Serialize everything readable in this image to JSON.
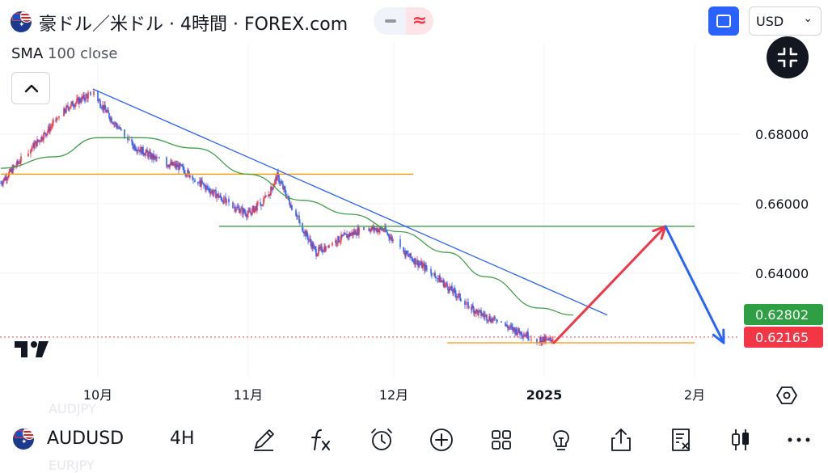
{
  "header": {
    "title": "豪ドル／米ドル · 4時間 · FOREX.com",
    "currency": "USD",
    "indicator_name": "SMA",
    "indicator_params": "100 close"
  },
  "price_axis": {
    "ticks": [
      "0.68000",
      "0.66000",
      "0.64000"
    ],
    "badges": [
      {
        "value": "0.62802",
        "color": "#2ea043"
      },
      {
        "value": "0.62165",
        "color": "#f23645"
      }
    ]
  },
  "time_axis": {
    "ticks": [
      "10月",
      "11月",
      "12月",
      "2025",
      "2月"
    ]
  },
  "bottom_bar": {
    "symbol": "AUDUSD",
    "interval": "4H",
    "ghost_top": "AUDJPY",
    "ghost_bottom": "EURJPY",
    "tools": [
      "pen-icon",
      "fx-icon",
      "alarm-icon",
      "plus-circle-icon",
      "grid-icon",
      "lightbulb-icon",
      "share-icon",
      "report-icon",
      "candles-icon",
      "more-icon"
    ]
  },
  "colors": {
    "trendline": "#2962ff",
    "sma": "#43a047",
    "horizontal_level": "#ff9800",
    "bullish": "#f23645",
    "bearish": "#2962ff",
    "up_arrow": "#f23645",
    "down_arrow": "#2962ff"
  },
  "chart_data": {
    "type": "line",
    "subtype": "candlestick",
    "symbol": "AUDUSD",
    "interval": "4H",
    "ylim": [
      0.618,
      0.7
    ],
    "price_series": [
      {
        "date": "2024-09-11",
        "close": 0.666
      },
      {
        "date": "2024-09-16",
        "close": 0.674
      },
      {
        "date": "2024-09-20",
        "close": 0.68
      },
      {
        "date": "2024-09-25",
        "close": 0.688
      },
      {
        "date": "2024-09-30",
        "close": 0.692
      },
      {
        "date": "2024-10-04",
        "close": 0.684
      },
      {
        "date": "2024-10-08",
        "close": 0.677
      },
      {
        "date": "2024-10-14",
        "close": 0.672
      },
      {
        "date": "2024-10-18",
        "close": 0.6705
      },
      {
        "date": "2024-10-23",
        "close": 0.665
      },
      {
        "date": "2024-10-28",
        "close": 0.66
      },
      {
        "date": "2024-11-01",
        "close": 0.657
      },
      {
        "date": "2024-11-05",
        "close": 0.662
      },
      {
        "date": "2024-11-07",
        "close": 0.668
      },
      {
        "date": "2024-11-11",
        "close": 0.656
      },
      {
        "date": "2024-11-15",
        "close": 0.646
      },
      {
        "date": "2024-11-20",
        "close": 0.65
      },
      {
        "date": "2024-11-25",
        "close": 0.653
      },
      {
        "date": "2024-11-29",
        "close": 0.6525
      },
      {
        "date": "2024-12-03",
        "close": 0.646
      },
      {
        "date": "2024-12-09",
        "close": 0.64
      },
      {
        "date": "2024-12-13",
        "close": 0.635
      },
      {
        "date": "2024-12-18",
        "close": 0.629
      },
      {
        "date": "2024-12-23",
        "close": 0.6255
      },
      {
        "date": "2024-12-27",
        "close": 0.623
      },
      {
        "date": "2024-12-31",
        "close": 0.621
      },
      {
        "date": "2025-01-02",
        "close": 0.6205
      },
      {
        "date": "2025-01-03",
        "close": 0.6216
      }
    ],
    "sma_100": [
      {
        "date": "2024-09-11",
        "value": 0.6702
      },
      {
        "date": "2024-09-22",
        "value": 0.6735
      },
      {
        "date": "2024-10-01",
        "value": 0.679
      },
      {
        "date": "2024-10-10",
        "value": 0.679
      },
      {
        "date": "2024-10-21",
        "value": 0.676
      },
      {
        "date": "2024-11-01",
        "value": 0.6685
      },
      {
        "date": "2024-11-12",
        "value": 0.661
      },
      {
        "date": "2024-11-22",
        "value": 0.657
      },
      {
        "date": "2024-12-02",
        "value": 0.652
      },
      {
        "date": "2024-12-12",
        "value": 0.646
      },
      {
        "date": "2024-12-20",
        "value": 0.639
      },
      {
        "date": "2024-12-31",
        "value": 0.63
      },
      {
        "date": "2025-01-07",
        "value": 0.628
      }
    ],
    "trendline": [
      {
        "date": "2024-09-30",
        "value": 0.693
      },
      {
        "date": "2025-01-14",
        "value": 0.628
      }
    ],
    "horizontal_lines": [
      {
        "value": 0.6685,
        "from": "2024-09-11",
        "to": "2024-12-05"
      },
      {
        "value": 0.6535,
        "from": "2024-10-26",
        "to": "2025-02-01"
      },
      {
        "value": 0.62,
        "from": "2024-12-12",
        "to": "2025-02-01"
      }
    ],
    "projection": [
      {
        "date": "2025-01-03",
        "value": 0.62
      },
      {
        "date": "2025-01-26",
        "value": 0.6535
      },
      {
        "date": "2025-02-07",
        "value": 0.62
      }
    ],
    "last_price": 0.62165,
    "sma_last": 0.62802
  }
}
